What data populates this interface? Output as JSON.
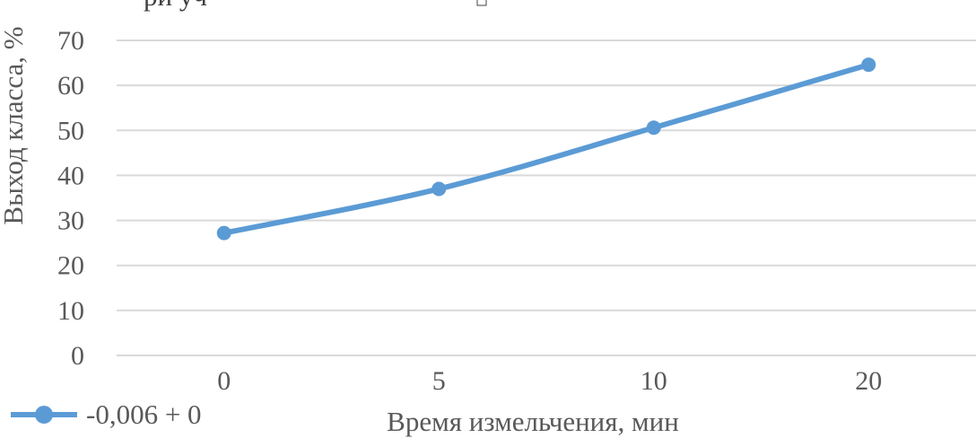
{
  "chart_data": {
    "type": "line",
    "categories": [
      "0",
      "5",
      "10",
      "20"
    ],
    "series": [
      {
        "name": "-0,006 + 0",
        "values": [
          27.2,
          37.0,
          50.6,
          64.6
        ],
        "color": "#5B9BD5"
      }
    ],
    "xlabel": "Время измельчения, мин",
    "ylabel": "Выход класса, %",
    "ylim": [
      0,
      70
    ],
    "yticks": [
      "0",
      "10",
      "20",
      "30",
      "40",
      "50",
      "60",
      "70"
    ],
    "grid": true,
    "legend_position": "bottom-left",
    "clipped_title_fragment": "ри уч",
    "gridline_color": "#D9D9D9"
  }
}
